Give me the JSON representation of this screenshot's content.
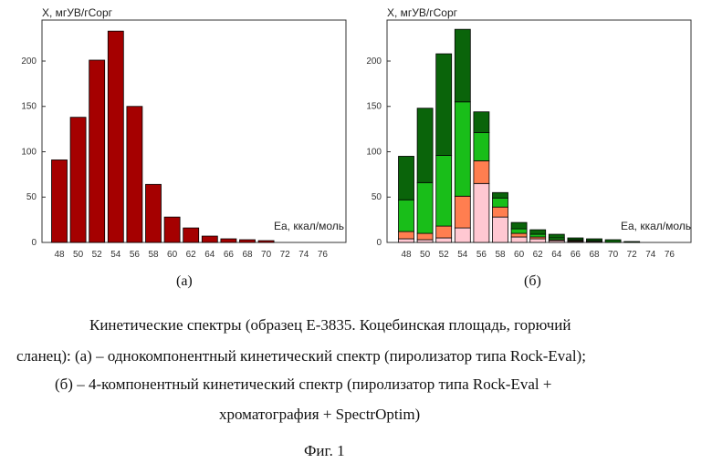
{
  "chart_data": [
    {
      "type": "bar",
      "subplot_label": "(а)",
      "ylabel": "X, мгУВ/гСорг",
      "xlabel": "Ea, ккал/моль",
      "yticks": [
        0,
        50,
        100,
        150,
        200
      ],
      "ylim": [
        0,
        235
      ],
      "categories": [
        "48",
        "50",
        "52",
        "54",
        "56",
        "58",
        "60",
        "62",
        "64",
        "66",
        "68",
        "70",
        "72",
        "74",
        "76"
      ],
      "series": [
        {
          "color": "#a50000",
          "values": [
            91,
            138,
            201,
            233,
            150,
            64,
            28,
            16,
            7,
            4,
            3,
            2,
            0,
            0,
            0
          ]
        }
      ],
      "grid": false
    },
    {
      "type": "bar",
      "stacked": true,
      "subplot_label": "(б)",
      "ylabel": "X, мгУВ/гСорг",
      "xlabel": "Ea, ккал/моль",
      "yticks": [
        0,
        50,
        100,
        150,
        200
      ],
      "ylim": [
        0,
        235
      ],
      "categories": [
        "48",
        "50",
        "52",
        "54",
        "56",
        "58",
        "60",
        "62",
        "64",
        "66",
        "68",
        "70",
        "72",
        "74",
        "76"
      ],
      "series": [
        {
          "color": "#ffc8d2",
          "values": [
            4,
            3,
            5,
            16,
            65,
            28,
            6,
            4,
            2,
            1,
            1,
            0,
            0,
            0,
            0
          ]
        },
        {
          "color": "#ff7e50",
          "values": [
            8,
            7,
            13,
            35,
            25,
            11,
            4,
            2,
            1,
            1,
            0,
            0,
            0,
            0,
            0
          ]
        },
        {
          "color": "#19be19",
          "values": [
            35,
            56,
            78,
            104,
            31,
            10,
            5,
            3,
            2,
            1,
            1,
            0,
            0,
            0,
            0
          ]
        },
        {
          "color": "#0a640a",
          "values": [
            48,
            82,
            112,
            80,
            23,
            6,
            7,
            5,
            4,
            2,
            2,
            3,
            1,
            0,
            0
          ]
        }
      ],
      "grid": false
    }
  ],
  "caption": {
    "line1": "Кинетические спектры (образец Е-3835. Коцебинская площадь, горючий",
    "line2": "сланец):  (а) – однокомпонентный кинетический спектр (пиролизатор типа Rock-Eval);",
    "line3": "(б) – 4-компонентный кинетический спектр (пиролизатор типа Rock-Eval +",
    "line4": "хроматография + SpectrOptim)"
  },
  "figure_label": "Фиг. 1"
}
